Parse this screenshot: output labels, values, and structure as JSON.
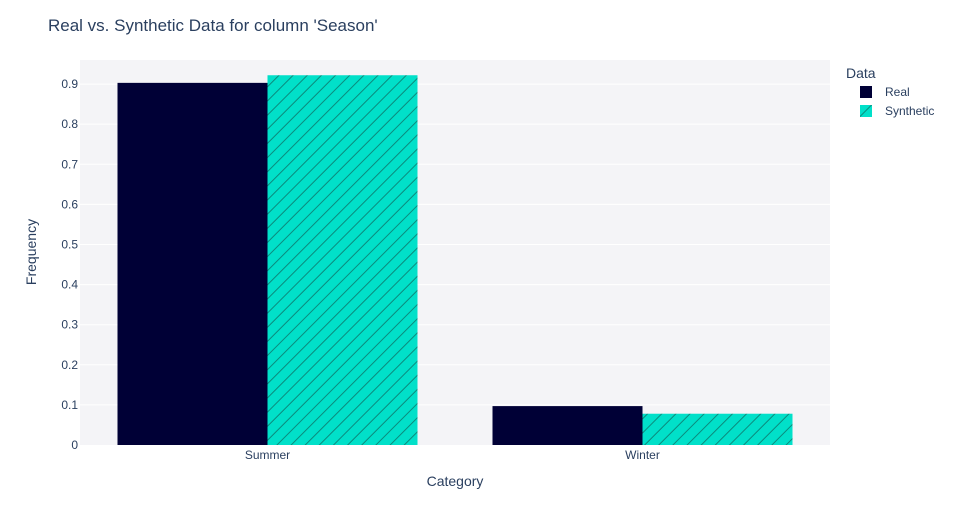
{
  "chart_data": {
    "type": "bar",
    "title": "Real vs. Synthetic Data for column 'Season'",
    "xlabel": "Category",
    "ylabel": "Frequency",
    "categories": [
      "Summer",
      "Winter"
    ],
    "series": [
      {
        "name": "Real",
        "values": [
          0.903,
          0.097
        ],
        "color": "#000036",
        "pattern": "solid"
      },
      {
        "name": "Synthetic",
        "values": [
          0.922,
          0.078
        ],
        "color": "#01E0C9",
        "pattern": "diagonal-hatch"
      }
    ],
    "ylim": [
      0,
      0.96
    ],
    "yticks": [
      0,
      0.1,
      0.2,
      0.3,
      0.4,
      0.5,
      0.6,
      0.7,
      0.8,
      0.9
    ],
    "ytick_labels": [
      "0",
      "0.1",
      "0.2",
      "0.3",
      "0.4",
      "0.5",
      "0.6",
      "0.7",
      "0.8",
      "0.9"
    ],
    "grid": true,
    "legend": {
      "title": "Data",
      "position": "top-right"
    },
    "colors": {
      "plot_background": "#F4F4F7",
      "grid": "#FFFFFF",
      "text": "#2A3F5F",
      "title": "#2A3F5F"
    }
  }
}
